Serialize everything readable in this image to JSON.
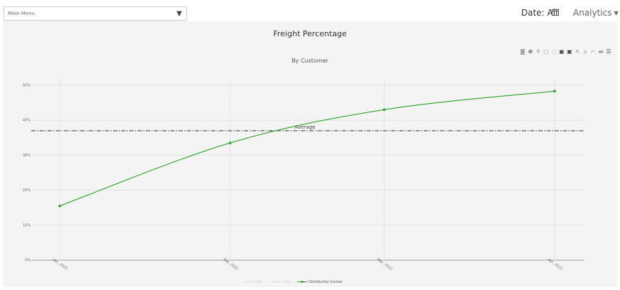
{
  "topbar": {
    "menu_label": "Main Menu",
    "menu_caret": "▼",
    "date_label": "Date: All",
    "analytics_label": "Analytics",
    "analytics_caret": "▼"
  },
  "icons": {
    "calendar": "calendar-icon",
    "modebar": [
      "camera-icon",
      "zoom-icon",
      "pan-icon",
      "box-select-icon",
      "lasso-select-icon",
      "zoom-in-icon",
      "zoom-out-icon",
      "autoscale-icon",
      "reset-axes-icon",
      "spike-lines-icon",
      "hover-closest-icon",
      "hover-compare-icon"
    ]
  },
  "colors": {
    "series": "#2ca02c",
    "average": "#555555",
    "panel_bg": "#f4f4f4"
  },
  "chart_data": {
    "type": "line",
    "title": "Freight Percentage",
    "subtitle": "By Customer",
    "x": [
      "Jan, 2022",
      "Feb, 2022",
      "Mar, 2022",
      "Apr, 2022"
    ],
    "x_dates": [
      "2022-01-01",
      "2022-02-01",
      "2022-03-01",
      "2022-04-01"
    ],
    "series": [
      {
        "name": "Distribution Center",
        "values": [
          15.5,
          33.5,
          43,
          48.3
        ]
      }
    ],
    "reference_lines": [
      {
        "label": "Average",
        "value": 37,
        "style": "dash-dot"
      }
    ],
    "legend": {
      "position": "bottom-center",
      "entries": [
        "min",
        "max",
        "Distribution Center"
      ]
    },
    "ylim": [
      0,
      52
    ],
    "yticks": [
      0,
      10,
      20,
      30,
      40,
      50
    ],
    "ytick_labels": [
      "0%",
      "10%",
      "20%",
      "30%",
      "40%",
      "50%"
    ],
    "grid": true
  }
}
